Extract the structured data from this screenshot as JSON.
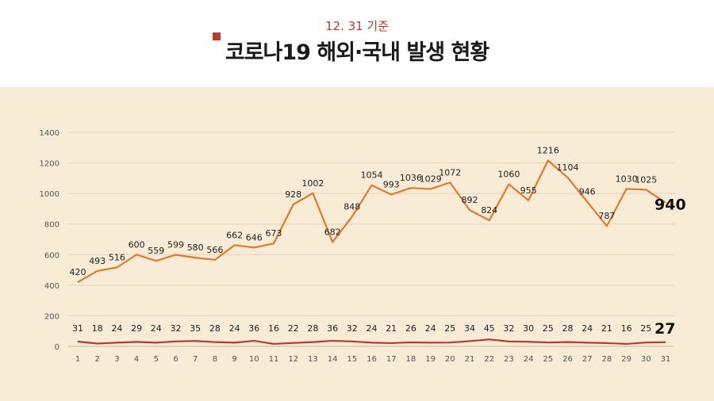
{
  "header": {
    "date": "12. 31 기준",
    "title": "코로나19 해외·국내 발생 현황"
  },
  "colors": {
    "accent": "#c0392b",
    "background": "#f8ecd6",
    "series_domestic": "#e07a2c",
    "series_overseas": "#b83a2e"
  },
  "chart_data": {
    "type": "line",
    "x": [
      1,
      2,
      3,
      4,
      5,
      6,
      7,
      8,
      9,
      10,
      11,
      12,
      13,
      14,
      15,
      16,
      17,
      18,
      19,
      20,
      21,
      22,
      23,
      24,
      25,
      26,
      27,
      28,
      29,
      30,
      31
    ],
    "ylim": [
      0,
      1400
    ],
    "yticks": [
      0,
      200,
      400,
      600,
      800,
      1000,
      1200,
      1400
    ],
    "grid": true,
    "series": [
      {
        "values": [
          420,
          493,
          516,
          600,
          559,
          599,
          580,
          566,
          662,
          646,
          673,
          928,
          1002,
          682,
          848,
          1054,
          993,
          1036,
          1029,
          1072,
          892,
          824,
          1060,
          955,
          1216,
          1104,
          946,
          787,
          1030,
          1025,
          940
        ]
      },
      {
        "values": [
          31,
          18,
          24,
          29,
          24,
          32,
          35,
          28,
          24,
          36,
          16,
          22,
          28,
          36,
          32,
          24,
          21,
          26,
          24,
          25,
          34,
          45,
          32,
          30,
          25,
          28,
          24,
          21,
          16,
          25,
          27
        ]
      }
    ]
  }
}
